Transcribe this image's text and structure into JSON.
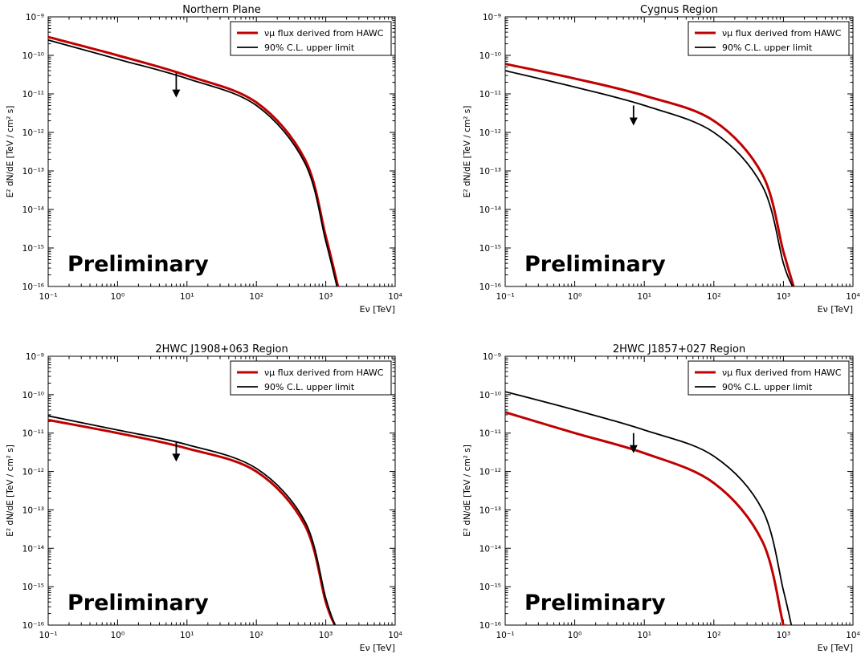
{
  "chart_data": [
    {
      "type": "line",
      "title": "Northern Plane",
      "xlabel": "Eν [TeV]",
      "ylabel": "E² dN/dE [TeV / cm² s]",
      "xscale": "log",
      "yscale": "log",
      "xlim": [
        0.1,
        10000
      ],
      "ylim": [
        1e-16,
        1e-09
      ],
      "x_ticks": [
        "10⁻¹",
        "10⁰",
        "10¹",
        "10²",
        "10³",
        "10⁴"
      ],
      "y_ticks": [
        "10⁻¹⁶",
        "10⁻¹⁵",
        "10⁻¹⁴",
        "10⁻¹³",
        "10⁻¹²",
        "10⁻¹¹",
        "10⁻¹⁰",
        "10⁻⁹"
      ],
      "legend_position": "top-right",
      "watermark": "Preliminary",
      "series": [
        {
          "name": "νμ flux derived from HAWC",
          "color": "#c00000",
          "linewidth": "thick",
          "x": [
            0.1,
            1,
            10,
            100,
            500,
            1000,
            1500
          ],
          "y": [
            3e-10,
            1e-10,
            3e-11,
            6e-12,
            2e-13,
            2e-15,
            1e-16
          ]
        },
        {
          "name": "90% C.L. upper limit",
          "color": "#000000",
          "linewidth": "normal",
          "x": [
            0.1,
            1,
            10,
            100,
            500,
            1000,
            1450
          ],
          "y": [
            2.5e-10,
            8e-11,
            2.5e-11,
            5e-12,
            1.6e-13,
            1.5e-15,
            1e-16
          ]
        }
      ],
      "upper_limit_arrow": {
        "x": 7,
        "y_from": 3.5e-11,
        "y_to": 8e-12
      }
    },
    {
      "type": "line",
      "title": "Cygnus Region",
      "xlabel": "Eν [TeV]",
      "ylabel": "E² dN/dE [TeV / cm² s]",
      "xscale": "log",
      "yscale": "log",
      "xlim": [
        0.1,
        10000
      ],
      "ylim": [
        1e-16,
        1e-09
      ],
      "x_ticks": [
        "10⁻¹",
        "10⁰",
        "10¹",
        "10²",
        "10³",
        "10⁴"
      ],
      "y_ticks": [
        "10⁻¹⁶",
        "10⁻¹⁵",
        "10⁻¹⁴",
        "10⁻¹³",
        "10⁻¹²",
        "10⁻¹¹",
        "10⁻¹⁰",
        "10⁻⁹"
      ],
      "legend_position": "top-right",
      "watermark": "Preliminary",
      "series": [
        {
          "name": "νμ flux derived from HAWC",
          "color": "#c00000",
          "linewidth": "thick",
          "x": [
            0.1,
            1,
            10,
            100,
            500,
            1000,
            1400
          ],
          "y": [
            6e-11,
            2.5e-11,
            9e-12,
            2e-12,
            8e-14,
            8e-16,
            1e-16
          ]
        },
        {
          "name": "90% C.L. upper limit",
          "color": "#000000",
          "linewidth": "normal",
          "x": [
            0.1,
            1,
            10,
            100,
            500,
            1000,
            1350
          ],
          "y": [
            4e-11,
            1.5e-11,
            5e-12,
            1e-12,
            4e-14,
            4e-16,
            1e-16
          ]
        }
      ],
      "upper_limit_arrow": {
        "x": 7,
        "y_from": 5e-12,
        "y_to": 1.5e-12
      }
    },
    {
      "type": "line",
      "title": "2HWC J1908+063 Region",
      "xlabel": "Eν [TeV]",
      "ylabel": "E² dN/dE [TeV / cm² s]",
      "xscale": "log",
      "yscale": "log",
      "xlim": [
        0.1,
        10000
      ],
      "ylim": [
        1e-16,
        1e-09
      ],
      "x_ticks": [
        "10⁻¹",
        "10⁰",
        "10¹",
        "10²",
        "10³",
        "10⁴"
      ],
      "y_ticks": [
        "10⁻¹⁶",
        "10⁻¹⁵",
        "10⁻¹⁴",
        "10⁻¹³",
        "10⁻¹²",
        "10⁻¹¹",
        "10⁻¹⁰",
        "10⁻⁹"
      ],
      "legend_position": "top-right",
      "watermark": "Preliminary",
      "series": [
        {
          "name": "νμ flux derived from HAWC",
          "color": "#c00000",
          "linewidth": "thick",
          "x": [
            0.1,
            1,
            10,
            100,
            500,
            1000,
            1350
          ],
          "y": [
            2.2e-11,
            1e-11,
            4e-12,
            1e-12,
            4e-14,
            4e-16,
            1e-16
          ]
        },
        {
          "name": "90% C.L. upper limit",
          "color": "#000000",
          "linewidth": "normal",
          "x": [
            0.1,
            1,
            10,
            100,
            500,
            1000,
            1350
          ],
          "y": [
            2.8e-11,
            1.2e-11,
            5e-12,
            1.2e-12,
            5e-14,
            5e-16,
            1e-16
          ]
        }
      ],
      "upper_limit_arrow": {
        "x": 7,
        "y_from": 6e-12,
        "y_to": 1.8e-12
      }
    },
    {
      "type": "line",
      "title": "2HWC J1857+027 Region",
      "xlabel": "Eν [TeV]",
      "ylabel": "E² dN/dE [TeV / cm² s]",
      "xscale": "log",
      "yscale": "log",
      "xlim": [
        0.1,
        10000
      ],
      "ylim": [
        1e-16,
        1e-09
      ],
      "x_ticks": [
        "10⁻¹",
        "10⁰",
        "10¹",
        "10²",
        "10³",
        "10⁴"
      ],
      "y_ticks": [
        "10⁻¹⁶",
        "10⁻¹⁵",
        "10⁻¹⁴",
        "10⁻¹³",
        "10⁻¹²",
        "10⁻¹¹",
        "10⁻¹⁰",
        "10⁻⁹"
      ],
      "legend_position": "top-right",
      "watermark": "Preliminary",
      "series": [
        {
          "name": "νμ flux derived from HAWC",
          "color": "#c00000",
          "linewidth": "thick",
          "x": [
            0.1,
            1,
            10,
            100,
            500,
            1000,
            1100
          ],
          "y": [
            3.5e-11,
            1e-11,
            3e-12,
            5e-13,
            1.5e-14,
            1e-16,
            1e-16
          ]
        },
        {
          "name": "90% C.L. upper limit",
          "color": "#000000",
          "linewidth": "normal",
          "x": [
            0.1,
            1,
            10,
            100,
            500,
            1000,
            1300
          ],
          "y": [
            1.2e-10,
            4e-11,
            1.2e-11,
            2.5e-12,
            1e-13,
            8e-16,
            1e-16
          ]
        }
      ],
      "upper_limit_arrow": {
        "x": 7,
        "y_from": 1e-11,
        "y_to": 3e-12
      }
    }
  ]
}
